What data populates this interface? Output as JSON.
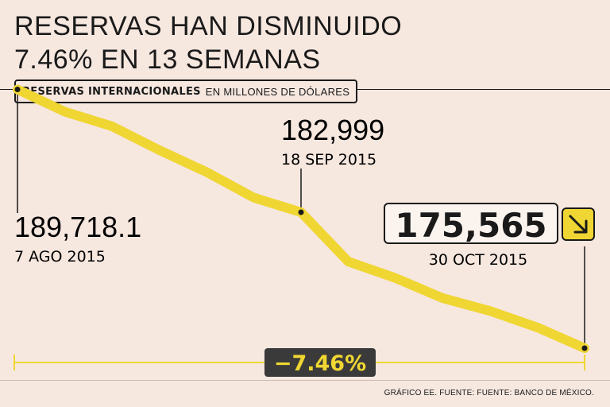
{
  "header": {
    "title_line1": "RESERVAS HAN DISMINUIDO",
    "title_line2": "7.46% EN 13 SEMANAS",
    "subtitle_bold": "RESERVAS INTERNACIONALES",
    "subtitle_light": "EN MILLONES DE DÓLARES"
  },
  "colors": {
    "background": "#f6e7df",
    "line": "#f0d632",
    "dark": "#1a1a1a",
    "badge": "#3a3a3a",
    "badge_text": "#f0d632"
  },
  "chart_data": {
    "type": "line",
    "title": "RESERVAS HAN DISMINUIDO 7.46% EN 13 SEMANAS",
    "ylabel": "EN MILLONES DE DÓLARES",
    "x": [
      "7 AGO 2015",
      "",
      "",
      "",
      "",
      "",
      "18 SEP 2015",
      "",
      "",
      "",
      "",
      "",
      "30 OCT 2015"
    ],
    "values": [
      189718.1,
      188500,
      187700,
      186400,
      185200,
      183800,
      182999,
      180300,
      179400,
      178300,
      177600,
      176700,
      175565
    ],
    "ylim": [
      172000,
      192000
    ],
    "grid": false,
    "annotations": [
      {
        "value": "189,718.1",
        "date": "7 AGO 2015",
        "index": 0
      },
      {
        "value": "182,999",
        "date": "18 SEP 2015",
        "index": 6
      },
      {
        "value": "175,565",
        "date": "30 OCT 2015",
        "index": 12
      }
    ],
    "change_label": "−7.46%",
    "arrow_icon": "arrow-down-right-icon"
  },
  "footer": {
    "source": "GRÁFICO EE. FUENTE: FUENTE: BANCO DE MÉXICO."
  }
}
